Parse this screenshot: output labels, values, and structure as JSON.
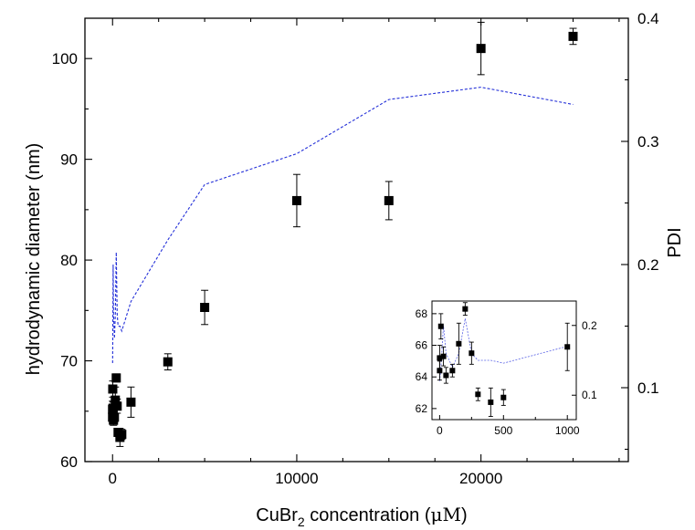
{
  "chart_data": {
    "type": "scatter",
    "main": {
      "xlabel_parts": [
        "CuBr",
        "2",
        " concentration (",
        "μM",
        ")"
      ],
      "ylabel": "hydrodynamic diameter (nm)",
      "y2label": "PDI",
      "xlim": [
        -1500,
        28000
      ],
      "ylim": [
        60,
        104
      ],
      "y2lim": [
        0.04,
        0.4
      ],
      "x_ticks": [
        0,
        10000,
        20000
      ],
      "x_tick_labels": [
        "0",
        "10000",
        "20000"
      ],
      "y_ticks": [
        60,
        70,
        80,
        90,
        100
      ],
      "y_tick_labels": [
        "60",
        "70",
        "80",
        "90",
        "100"
      ],
      "y2_ticks": [
        0.1,
        0.2,
        0.3,
        0.4
      ],
      "y2_tick_labels": [
        "0.1",
        "0.2",
        "0.3",
        "0.4"
      ],
      "series": [
        {
          "marker": "square",
          "color": "#000000",
          "axis": "left",
          "points": [
            {
              "x": 0,
              "y": 65.2,
              "err": 0.8
            },
            {
              "x": 0,
              "y": 64.4,
              "err": 0.6
            },
            {
              "x": 10,
              "y": 67.2,
              "err": 0.8
            },
            {
              "x": 30,
              "y": 65.3,
              "err": 0.6
            },
            {
              "x": 50,
              "y": 64.1,
              "err": 0.5
            },
            {
              "x": 100,
              "y": 64.4,
              "err": 0.4
            },
            {
              "x": 150,
              "y": 66.1,
              "err": 1.3
            },
            {
              "x": 200,
              "y": 68.3,
              "err": 0.4
            },
            {
              "x": 250,
              "y": 65.5,
              "err": 0.7
            },
            {
              "x": 300,
              "y": 62.9,
              "err": 0.4
            },
            {
              "x": 400,
              "y": 62.4,
              "err": 0.9
            },
            {
              "x": 500,
              "y": 62.7,
              "err": 0.5
            },
            {
              "x": 1000,
              "y": 65.9,
              "err": 1.5
            },
            {
              "x": 3000,
              "y": 69.9,
              "err": 0.8
            },
            {
              "x": 5000,
              "y": 75.3,
              "err": 1.7
            },
            {
              "x": 10000,
              "y": 85.9,
              "err": 2.6
            },
            {
              "x": 15000,
              "y": 85.9,
              "err": 1.9
            },
            {
              "x": 20000,
              "y": 101.0,
              "err": 2.6
            },
            {
              "x": 25000,
              "y": 102.2,
              "err": 0.8
            }
          ]
        },
        {
          "line": "dashed",
          "color": "#2430d8",
          "axis": "right",
          "points": [
            {
              "x": 0,
              "y": 0.12
            },
            {
              "x": 10,
              "y": 0.14
            },
            {
              "x": 30,
              "y": 0.2
            },
            {
              "x": 50,
              "y": 0.16
            },
            {
              "x": 100,
              "y": 0.14
            },
            {
              "x": 150,
              "y": 0.16
            },
            {
              "x": 200,
              "y": 0.21
            },
            {
              "x": 250,
              "y": 0.16
            },
            {
              "x": 300,
              "y": 0.15
            },
            {
              "x": 400,
              "y": 0.15
            },
            {
              "x": 500,
              "y": 0.146
            },
            {
              "x": 1000,
              "y": 0.17
            },
            {
              "x": 3000,
              "y": 0.22
            },
            {
              "x": 5000,
              "y": 0.265
            },
            {
              "x": 10000,
              "y": 0.29
            },
            {
              "x": 15000,
              "y": 0.334
            },
            {
              "x": 20000,
              "y": 0.344
            },
            {
              "x": 25000,
              "y": 0.33
            }
          ]
        }
      ]
    },
    "inset": {
      "xlim": [
        -60,
        1070
      ],
      "ylim": [
        61.3,
        68.8
      ],
      "y2lim": [
        0.065,
        0.235
      ],
      "x_ticks": [
        0,
        500,
        1000
      ],
      "x_tick_labels": [
        "0",
        "500",
        "1000"
      ],
      "y_ticks": [
        62,
        64,
        66,
        68
      ],
      "y_tick_labels": [
        "62",
        "64",
        "66",
        "68"
      ],
      "y2_ticks": [
        0.1,
        0.2
      ],
      "y2_tick_labels": [
        "0.1",
        "0.2"
      ]
    }
  }
}
